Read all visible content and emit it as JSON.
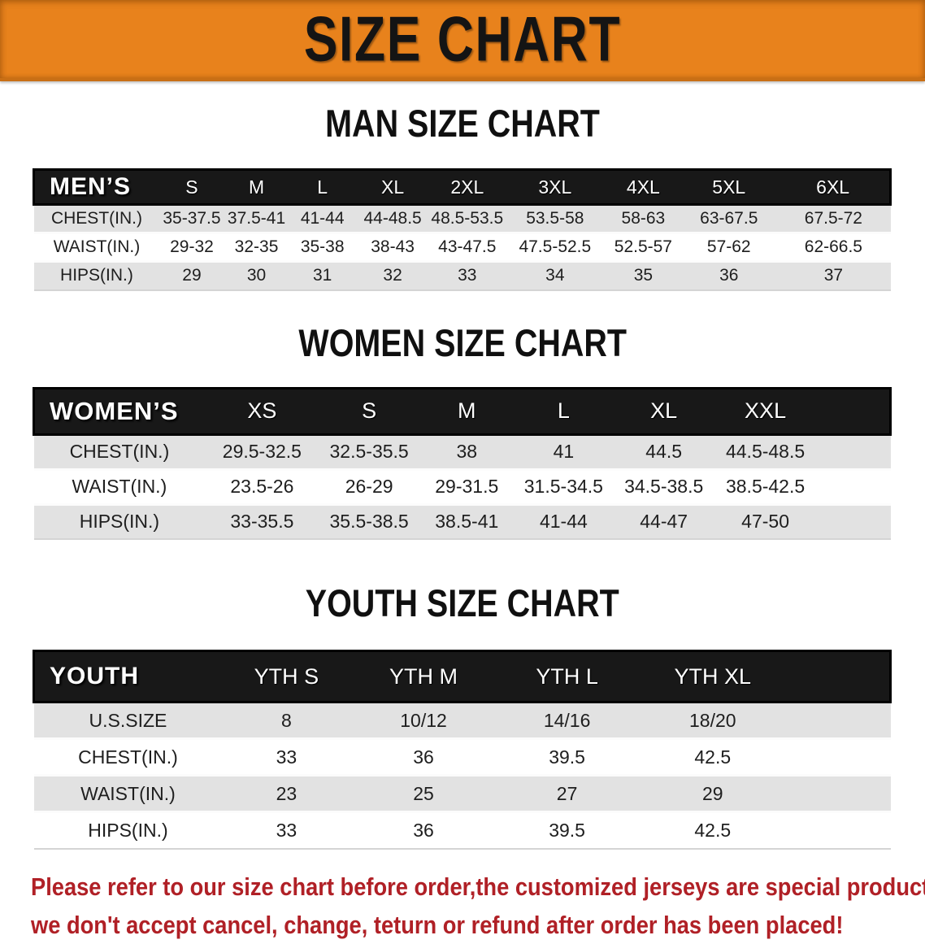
{
  "banner": {
    "title": "SIZE CHART",
    "bg_color": "#e8821c"
  },
  "men": {
    "heading": "MAN SIZE CHART",
    "table": {
      "header": [
        "MEN’S",
        "S",
        "M",
        "L",
        "XL",
        "2XL",
        "3XL",
        "4XL",
        "5XL",
        "6XL"
      ],
      "rows": [
        [
          "CHEST(IN.)",
          "35-37.5",
          "37.5-41",
          "41-44",
          "44-48.5",
          "48.5-53.5",
          "53.5-58",
          "58-63",
          "63-67.5",
          "67.5-72"
        ],
        [
          "WAIST(IN.)",
          "29-32",
          "32-35",
          "35-38",
          "38-43",
          "43-47.5",
          "47.5-52.5",
          "52.5-57",
          "57-62",
          "62-66.5"
        ],
        [
          "HIPS(IN.)",
          "29",
          "30",
          "31",
          "32",
          "33",
          "34",
          "35",
          "36",
          "37"
        ]
      ]
    }
  },
  "women": {
    "heading": "WOMEN SIZE CHART",
    "table": {
      "header": [
        "WOMEN’S",
        "XS",
        "S",
        "M",
        "L",
        "XL",
        "XXL"
      ],
      "rows": [
        [
          "CHEST(IN.)",
          "29.5-32.5",
          "32.5-35.5",
          "38",
          "41",
          "44.5",
          "44.5-48.5"
        ],
        [
          "WAIST(IN.)",
          "23.5-26",
          "26-29",
          "29-31.5",
          "31.5-34.5",
          "34.5-38.5",
          "38.5-42.5"
        ],
        [
          "HIPS(IN.)",
          "33-35.5",
          "35.5-38.5",
          "38.5-41",
          "41-44",
          "44-47",
          "47-50"
        ]
      ]
    }
  },
  "youth": {
    "heading": "YOUTH SIZE CHART",
    "table": {
      "header": [
        "YOUTH",
        "YTH S",
        "YTH M",
        "YTH L",
        "YTH XL"
      ],
      "rows": [
        [
          "U.S.SIZE",
          "8",
          "10/12",
          "14/16",
          "18/20"
        ],
        [
          "CHEST(IN.)",
          "33",
          "36",
          "39.5",
          "42.5"
        ],
        [
          "WAIST(IN.)",
          "23",
          "25",
          "27",
          "29"
        ],
        [
          "HIPS(IN.)",
          "33",
          "36",
          "39.5",
          "42.5"
        ]
      ]
    }
  },
  "disclaimer": {
    "line1": "Please refer to our size chart before order,the customized jerseys are special products,",
    "line2": "we don't accept cancel, change, teturn or refund after order has been placed!",
    "color": "#b02026"
  }
}
